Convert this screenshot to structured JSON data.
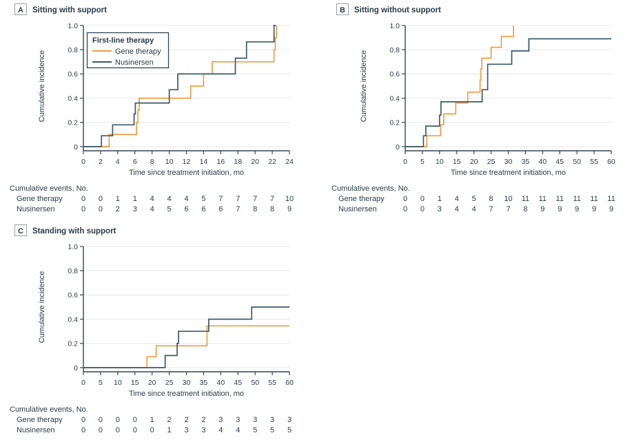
{
  "figure": {
    "text_color": "#2A3B47",
    "spine_color": "#334450",
    "grid_color": "#E8E8E8",
    "panel_box_border": "#9AA0A4",
    "background": "#FFFFFF"
  },
  "labels": {
    "xlabel": "Time since treatment initiation, mo",
    "ylabel": "Cumulative incidence",
    "events_header": "Cumulative events, No."
  },
  "legend": {
    "title": "First-line therapy",
    "items": [
      {
        "label": "Gene therapy",
        "color": "#F29B40"
      },
      {
        "label": "Nusinersen",
        "color": "#38596A"
      }
    ]
  },
  "chart_data": [
    {
      "type": "line",
      "panel_letter": "A",
      "title": "Sitting with support",
      "xlabel": "Time since treatment initiation, mo",
      "ylabel": "Cumulative incidence",
      "xlim": [
        0,
        24
      ],
      "ylim": [
        0,
        1.0
      ],
      "x_ticks": [
        0,
        2,
        4,
        6,
        8,
        10,
        12,
        14,
        16,
        18,
        20,
        22,
        24
      ],
      "y_ticks": [
        "0",
        "0.2",
        "0.4",
        "0.6",
        "0.8",
        "1.0"
      ],
      "grid": true,
      "legend_position": "upper-left-inside",
      "show_legend": true,
      "series": [
        {
          "name": "Gene therapy",
          "color": "#F29B40",
          "steps": [
            [
              0,
              0
            ],
            [
              3,
              0
            ],
            [
              3,
              0.1
            ],
            [
              6.2,
              0.1
            ],
            [
              6.2,
              0.2
            ],
            [
              6.35,
              0.2
            ],
            [
              6.35,
              0.3
            ],
            [
              6.5,
              0.3
            ],
            [
              6.5,
              0.4
            ],
            [
              12.5,
              0.4
            ],
            [
              12.5,
              0.5
            ],
            [
              14,
              0.5
            ],
            [
              14,
              0.6
            ],
            [
              15,
              0.6
            ],
            [
              15,
              0.7
            ],
            [
              22.2,
              0.7
            ],
            [
              22.2,
              0.8
            ],
            [
              22.35,
              0.8
            ],
            [
              22.35,
              0.9
            ],
            [
              22.5,
              0.9
            ],
            [
              22.5,
              1.0
            ]
          ]
        },
        {
          "name": "Nusinersen",
          "color": "#38596A",
          "steps": [
            [
              0,
              0
            ],
            [
              2.1,
              0
            ],
            [
              2.1,
              0.09
            ],
            [
              3.4,
              0.09
            ],
            [
              3.4,
              0.18
            ],
            [
              5.9,
              0.18
            ],
            [
              5.9,
              0.27
            ],
            [
              6.05,
              0.27
            ],
            [
              6.05,
              0.36
            ],
            [
              10,
              0.36
            ],
            [
              10,
              0.47
            ],
            [
              11,
              0.47
            ],
            [
              11,
              0.6
            ],
            [
              17.7,
              0.6
            ],
            [
              17.7,
              0.73
            ],
            [
              19,
              0.73
            ],
            [
              19,
              0.865
            ],
            [
              22.2,
              0.865
            ],
            [
              22.2,
              1.0
            ],
            [
              22.4,
              1.0
            ]
          ]
        }
      ],
      "cumulative_events": [
        {
          "label": "Gene therapy",
          "values": [
            0,
            0,
            1,
            1,
            4,
            4,
            4,
            5,
            7,
            7,
            7,
            7,
            10
          ]
        },
        {
          "label": "Nusinersen",
          "values": [
            0,
            0,
            2,
            3,
            4,
            5,
            6,
            6,
            6,
            7,
            8,
            8,
            9
          ]
        }
      ]
    },
    {
      "type": "line",
      "panel_letter": "B",
      "title": "Sitting without support",
      "xlabel": "Time since treatment initiation, mo",
      "ylabel": "Cumulative incidence",
      "xlim": [
        0,
        60
      ],
      "ylim": [
        0,
        1.0
      ],
      "x_ticks": [
        0,
        5,
        10,
        15,
        20,
        25,
        30,
        35,
        40,
        45,
        50,
        55,
        60
      ],
      "y_ticks": [
        "0",
        "0.2",
        "0.4",
        "0.6",
        "0.8",
        "1.0"
      ],
      "grid": true,
      "show_legend": false,
      "series": [
        {
          "name": "Gene therapy",
          "color": "#F29B40",
          "steps": [
            [
              0,
              0
            ],
            [
              6.3,
              0
            ],
            [
              6.3,
              0.09
            ],
            [
              10.3,
              0.09
            ],
            [
              10.3,
              0.18
            ],
            [
              11.2,
              0.18
            ],
            [
              11.2,
              0.27
            ],
            [
              14.7,
              0.27
            ],
            [
              14.7,
              0.36
            ],
            [
              18.2,
              0.36
            ],
            [
              18.2,
              0.45
            ],
            [
              21.8,
              0.45
            ],
            [
              21.8,
              0.55
            ],
            [
              22,
              0.55
            ],
            [
              22,
              0.64
            ],
            [
              22.3,
              0.64
            ],
            [
              22.3,
              0.73
            ],
            [
              25,
              0.73
            ],
            [
              25,
              0.82
            ],
            [
              28,
              0.82
            ],
            [
              28,
              0.91
            ],
            [
              31.5,
              0.91
            ],
            [
              31.5,
              1.0
            ]
          ]
        },
        {
          "name": "Nusinersen",
          "color": "#38596A",
          "steps": [
            [
              0,
              0
            ],
            [
              5.3,
              0
            ],
            [
              5.3,
              0.09
            ],
            [
              6,
              0.09
            ],
            [
              6,
              0.17
            ],
            [
              10,
              0.17
            ],
            [
              10,
              0.26
            ],
            [
              10.4,
              0.26
            ],
            [
              10.4,
              0.37
            ],
            [
              22.4,
              0.37
            ],
            [
              22.4,
              0.47
            ],
            [
              24,
              0.47
            ],
            [
              24,
              0.68
            ],
            [
              31,
              0.68
            ],
            [
              31,
              0.79
            ],
            [
              36,
              0.79
            ],
            [
              36,
              0.89
            ],
            [
              60,
              0.89
            ]
          ]
        }
      ],
      "cumulative_events": [
        {
          "label": "Gene therapy",
          "values": [
            0,
            0,
            1,
            4,
            5,
            8,
            10,
            11,
            11,
            11,
            11,
            11,
            11
          ]
        },
        {
          "label": "Nusinersen",
          "values": [
            0,
            0,
            3,
            4,
            4,
            7,
            7,
            8,
            9,
            9,
            9,
            9,
            9
          ]
        }
      ]
    },
    {
      "type": "line",
      "panel_letter": "C",
      "title": "Standing with support",
      "xlabel": "Time since treatment initiation, mo",
      "ylabel": "Cumulative incidence",
      "xlim": [
        0,
        60
      ],
      "ylim": [
        0,
        1.0
      ],
      "x_ticks": [
        0,
        5,
        10,
        15,
        20,
        25,
        30,
        35,
        40,
        45,
        50,
        55,
        60
      ],
      "y_ticks": [
        "0",
        "0.2",
        "0.4",
        "0.6",
        "0.8",
        "1.0"
      ],
      "grid": true,
      "show_legend": false,
      "series": [
        {
          "name": "Gene therapy",
          "color": "#F29B40",
          "steps": [
            [
              0,
              0
            ],
            [
              18.5,
              0
            ],
            [
              18.5,
              0.09
            ],
            [
              21.2,
              0.09
            ],
            [
              21.2,
              0.18
            ],
            [
              36,
              0.18
            ],
            [
              36,
              0.345
            ],
            [
              60,
              0.345
            ]
          ]
        },
        {
          "name": "Nusinersen",
          "color": "#38596A",
          "steps": [
            [
              0,
              0
            ],
            [
              23.8,
              0
            ],
            [
              23.8,
              0.1
            ],
            [
              27.3,
              0.1
            ],
            [
              27.3,
              0.2
            ],
            [
              27.7,
              0.2
            ],
            [
              27.7,
              0.3
            ],
            [
              36.5,
              0.3
            ],
            [
              36.5,
              0.4
            ],
            [
              49,
              0.4
            ],
            [
              49,
              0.5
            ],
            [
              60,
              0.5
            ]
          ]
        }
      ],
      "cumulative_events": [
        {
          "label": "Gene therapy",
          "values": [
            0,
            0,
            0,
            0,
            1,
            2,
            2,
            2,
            3,
            3,
            3,
            3,
            3
          ]
        },
        {
          "label": "Nusinersen",
          "values": [
            0,
            0,
            0,
            0,
            0,
            1,
            3,
            3,
            4,
            4,
            5,
            5,
            5
          ]
        }
      ]
    }
  ]
}
